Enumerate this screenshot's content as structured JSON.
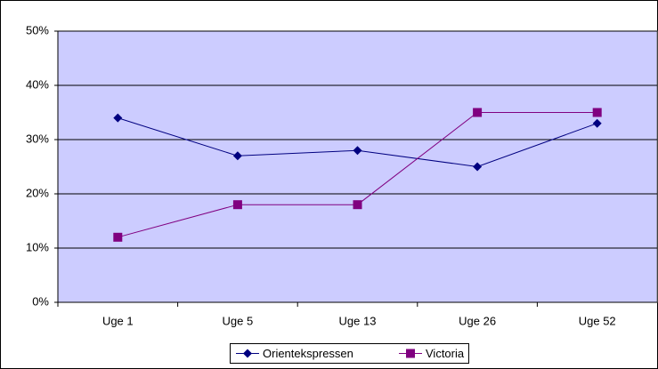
{
  "chart_data": {
    "type": "line",
    "categories": [
      "Uge 1",
      "Uge 5",
      "Uge 13",
      "Uge 26",
      "Uge 52"
    ],
    "series": [
      {
        "name": "Orientekspressen",
        "color": "#000080",
        "marker": "diamond",
        "values": [
          34,
          27,
          28,
          25,
          33
        ]
      },
      {
        "name": "Victoria",
        "color": "#800080",
        "marker": "square",
        "values": [
          12,
          18,
          18,
          35,
          35
        ]
      }
    ],
    "ylim": [
      0,
      50
    ],
    "yticks": [
      {
        "value": 0,
        "label": "0%"
      },
      {
        "value": 10,
        "label": "10%"
      },
      {
        "value": 20,
        "label": "20%"
      },
      {
        "value": 30,
        "label": "30%"
      },
      {
        "value": 40,
        "label": "40%"
      },
      {
        "value": 50,
        "label": "50%"
      }
    ],
    "grid": true,
    "plot_background": "#ccccff",
    "legend": "bottom"
  }
}
